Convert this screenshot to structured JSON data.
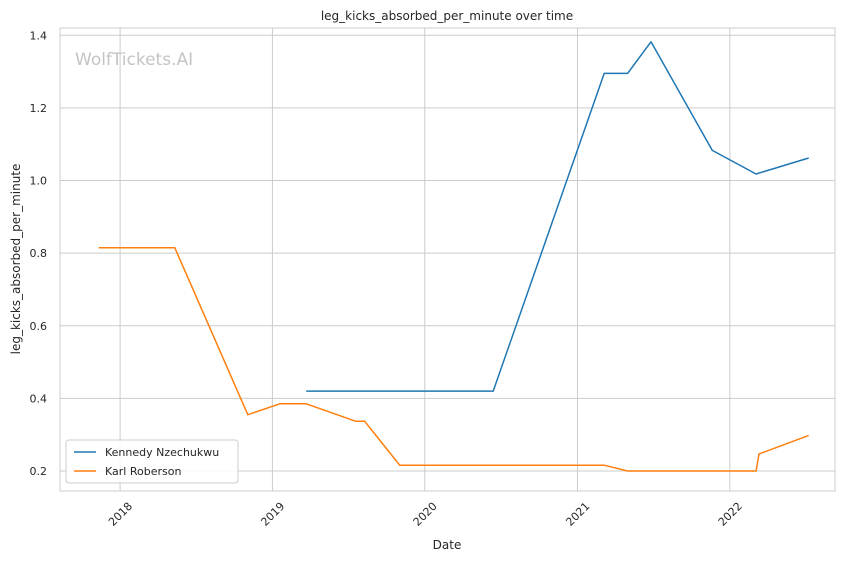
{
  "watermark": "WolfTickets.AI",
  "chart_data": {
    "type": "line",
    "title": "leg_kicks_absorbed_per_minute over time",
    "xlabel": "Date",
    "ylabel": "leg_kicks_absorbed_per_minute",
    "x_type": "date",
    "xlim": [
      "2017-08-10",
      "2022-09-10"
    ],
    "ylim": [
      0.145,
      1.42
    ],
    "x_ticks": [
      {
        "value": "2018-01-01",
        "label": "2018"
      },
      {
        "value": "2019-01-01",
        "label": "2019"
      },
      {
        "value": "2020-01-01",
        "label": "2020"
      },
      {
        "value": "2021-01-01",
        "label": "2021"
      },
      {
        "value": "2022-01-01",
        "label": "2022"
      }
    ],
    "y_ticks": [
      0.2,
      0.4,
      0.6,
      0.8,
      1.0,
      1.2,
      1.4
    ],
    "y_tick_labels": [
      "0.2",
      "0.4",
      "0.6",
      "0.8",
      "1.0",
      "1.2",
      "1.4"
    ],
    "grid": true,
    "legend_position": "lower-left",
    "series": [
      {
        "name": "Kennedy Nzechukwu",
        "color": "#1f77b4",
        "points": [
          {
            "x": "2019-03-23",
            "y": 0.42
          },
          {
            "x": "2020-06-13",
            "y": 0.42
          },
          {
            "x": "2021-03-06",
            "y": 1.295
          },
          {
            "x": "2021-05-01",
            "y": 1.295
          },
          {
            "x": "2021-06-26",
            "y": 1.382
          },
          {
            "x": "2021-11-20",
            "y": 1.083
          },
          {
            "x": "2022-03-05",
            "y": 1.018
          },
          {
            "x": "2022-07-09",
            "y": 1.062
          }
        ]
      },
      {
        "name": "Karl Roberson",
        "color": "#ff7f0e",
        "points": [
          {
            "x": "2017-11-11",
            "y": 0.815
          },
          {
            "x": "2018-05-12",
            "y": 0.815
          },
          {
            "x": "2018-11-03",
            "y": 0.355
          },
          {
            "x": "2019-01-19",
            "y": 0.385
          },
          {
            "x": "2019-03-23",
            "y": 0.385
          },
          {
            "x": "2019-07-20",
            "y": 0.337
          },
          {
            "x": "2019-08-10",
            "y": 0.337
          },
          {
            "x": "2019-11-02",
            "y": 0.216
          },
          {
            "x": "2021-03-06",
            "y": 0.216
          },
          {
            "x": "2021-05-01",
            "y": 0.2
          },
          {
            "x": "2022-03-05",
            "y": 0.2
          },
          {
            "x": "2022-03-12",
            "y": 0.247
          },
          {
            "x": "2022-07-09",
            "y": 0.298
          }
        ]
      }
    ]
  }
}
